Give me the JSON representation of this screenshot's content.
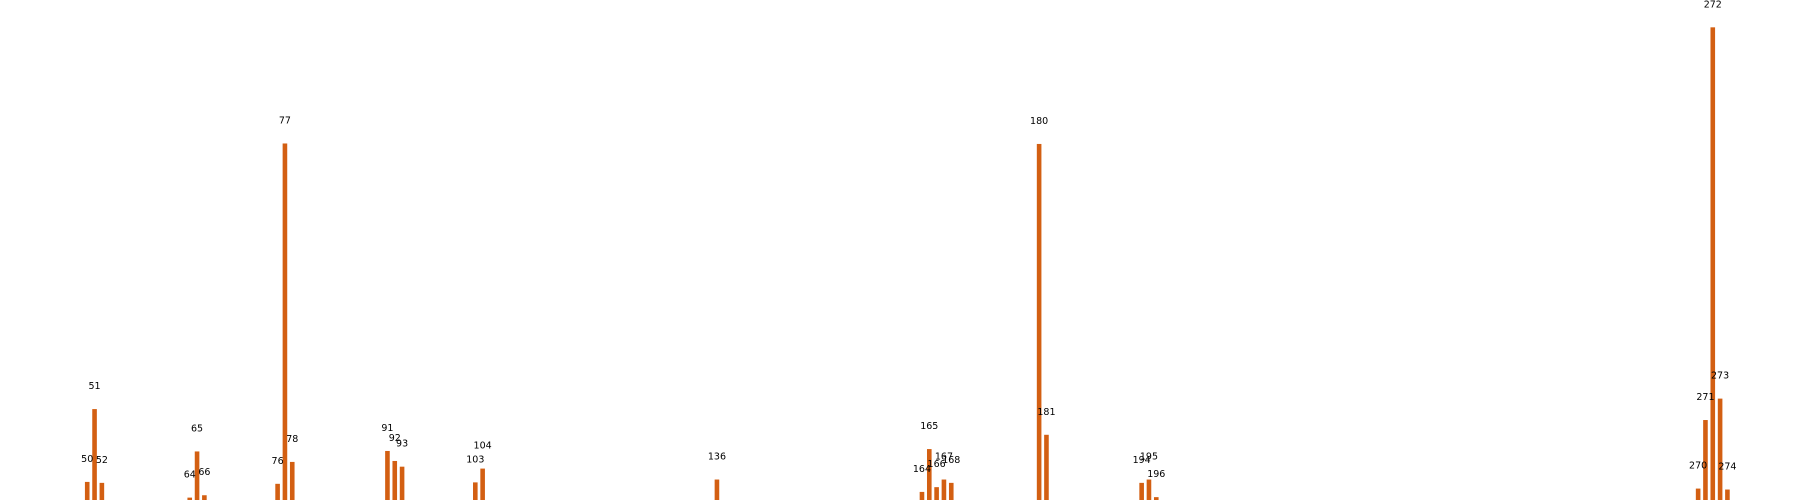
{
  "chart_data": {
    "type": "bar",
    "title": "",
    "xlabel": "",
    "ylabel": "",
    "xlim": [
      40,
      282
    ],
    "ylim": [
      0,
      100
    ],
    "grid": false,
    "axes_visible": false,
    "bar_color": "#d35f12",
    "series": [
      {
        "x": [
          50,
          51,
          52,
          64,
          65,
          66,
          76,
          77,
          78,
          91,
          92,
          93,
          103,
          104,
          136,
          164,
          165,
          166,
          167,
          168,
          180,
          181,
          194,
          195,
          196,
          270,
          271,
          272,
          273,
          274
        ],
        "values": [
          3.8,
          19.1,
          3.6,
          0.5,
          10.2,
          1.0,
          3.4,
          74.9,
          8.0,
          10.3,
          8.2,
          7.0,
          3.7,
          6.6,
          4.3,
          1.7,
          10.7,
          2.7,
          4.3,
          3.6,
          74.8,
          13.7,
          3.6,
          4.3,
          0.6,
          2.4,
          16.8,
          99.3,
          21.3,
          2.2
        ]
      }
    ],
    "labels": [
      "50",
      "51",
      "52",
      "64",
      "65",
      "66",
      "76",
      "77",
      "78",
      "91",
      "92",
      "93",
      "103",
      "104",
      "136",
      "164",
      "165",
      "166",
      "167",
      "168",
      "180",
      "181",
      "194",
      "195",
      "196",
      "270",
      "271",
      "272",
      "273",
      "274"
    ]
  }
}
